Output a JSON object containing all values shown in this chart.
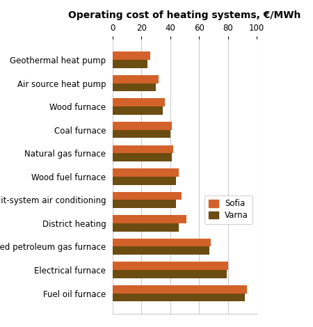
{
  "title": "Operating cost of heating systems, €/MWh",
  "categories": [
    "Geothermal heat pump",
    "Air source heat pump",
    "Wood furnace",
    "Coal furnace",
    "Natural gas furnace",
    "Wood fuel furnace",
    "Split-system air conditioning",
    "District heating",
    "Liquefied petroleum gas furnace",
    "Electrical furnace",
    "Fuel oil furnace"
  ],
  "sofia_values": [
    26,
    32,
    36,
    41,
    42,
    46,
    48,
    51,
    68,
    80,
    93
  ],
  "varna_values": [
    24,
    30,
    35,
    40,
    41,
    44,
    44,
    46,
    67,
    79,
    92
  ],
  "sofia_color": "#D2622A",
  "varna_color": "#6B4C11",
  "legend_labels": [
    "Sofia",
    "Varna"
  ],
  "xlim": [
    0,
    100
  ],
  "xticks": [
    0,
    20,
    40,
    60,
    80,
    100
  ],
  "bar_height": 0.35,
  "background_color": "#ffffff",
  "grid_color": "#cccccc",
  "title_fontsize": 10,
  "label_fontsize": 8.5,
  "tick_fontsize": 8.5
}
